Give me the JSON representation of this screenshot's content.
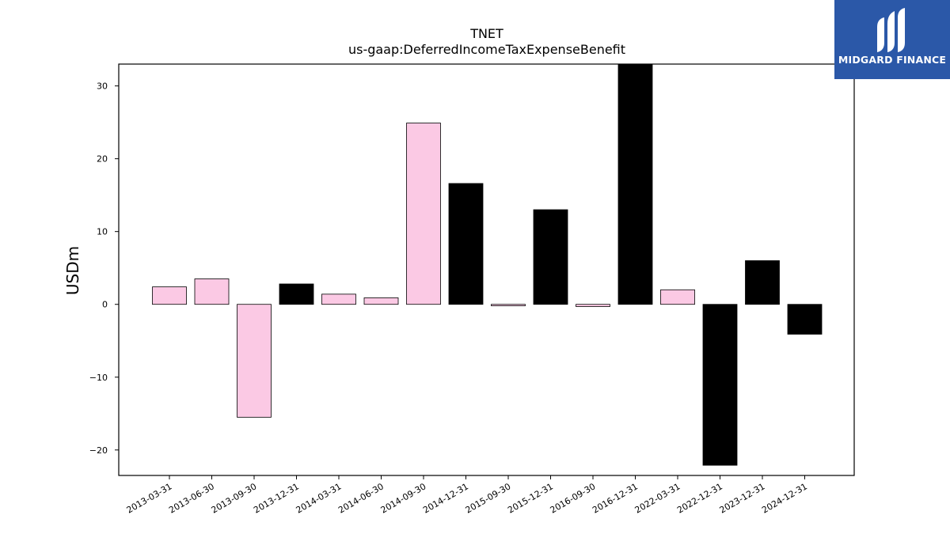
{
  "chart_data": {
    "type": "bar",
    "title": "TNET",
    "subtitle": "us-gaap:DeferredIncomeTaxExpenseBenefit",
    "xlabel": "",
    "ylabel": "USDm",
    "ylim": [
      -23.5,
      33
    ],
    "yticks": [
      -20,
      -10,
      0,
      10,
      20,
      30
    ],
    "ytick_labels": [
      "−20",
      "−10",
      "0",
      "10",
      "20",
      "30"
    ],
    "grid": false,
    "categories": [
      "2013-03-31",
      "2013-06-30",
      "2013-09-30",
      "2013-12-31",
      "2014-03-31",
      "2014-06-30",
      "2014-09-30",
      "2014-12-31",
      "2015-09-30",
      "2015-12-31",
      "2016-09-30",
      "2016-12-31",
      "2022-03-31",
      "2022-12-31",
      "2023-12-31",
      "2024-12-31"
    ],
    "values": [
      2.4,
      3.5,
      -15.5,
      2.8,
      1.4,
      0.9,
      24.9,
      16.6,
      -0.2,
      13.0,
      -0.3,
      33.0,
      2.0,
      -22.1,
      6.0,
      -4.1
    ],
    "bar_colors": [
      "#fbc9e4",
      "#fbc9e4",
      "#fbc9e4",
      "#000000",
      "#fbc9e4",
      "#fbc9e4",
      "#fbc9e4",
      "#000000",
      "#fbc9e4",
      "#000000",
      "#fbc9e4",
      "#000000",
      "#fbc9e4",
      "#000000",
      "#000000",
      "#000000"
    ]
  },
  "logo": {
    "text": "MIDGARD FINANCE",
    "background": "#2b58a8",
    "icon": "midgard-logo-icon"
  }
}
